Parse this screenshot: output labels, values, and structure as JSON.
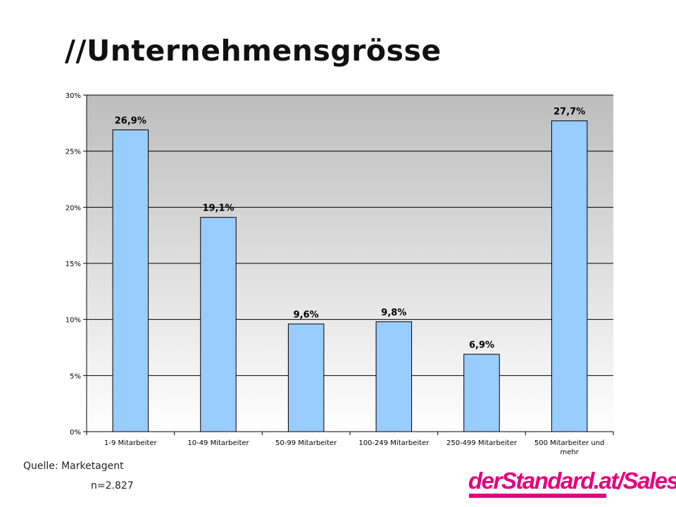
{
  "slide": {
    "title": "//Unternehmensgrösse",
    "source": "Quelle: Marketagent",
    "sample": "n=2.827"
  },
  "brand": {
    "main": "derStandard.at",
    "suffix": "/Sales",
    "main_color": "#e5007e",
    "suffix_color": "#e5007e"
  },
  "colors": {
    "bar_fill": "#99ccff",
    "bar_stroke": "#000000",
    "plot_top": "#bdbdbd",
    "plot_bottom": "#ffffff",
    "grid": "#000000"
  },
  "chart_data": {
    "type": "bar",
    "title": "",
    "xlabel": "",
    "ylabel": "",
    "categories": [
      [
        "1-9 Mitarbeiter"
      ],
      [
        "10-49 Mitarbeiter"
      ],
      [
        "50-99 Mitarbeiter"
      ],
      [
        "100-249 Mitarbeiter"
      ],
      [
        "250-499 Mitarbeiter"
      ],
      [
        "500 Mitarbeiter und",
        "mehr"
      ]
    ],
    "values": [
      26.9,
      19.1,
      9.6,
      9.8,
      6.9,
      27.7
    ],
    "data_labels": [
      "26,9%",
      "19,1%",
      "9,6%",
      "9,8%",
      "6,9%",
      "27,7%"
    ],
    "ylim": [
      0,
      30
    ],
    "yticks": [
      0,
      5,
      10,
      15,
      20,
      25,
      30
    ],
    "ytick_labels": [
      "0%",
      "5%",
      "10%",
      "15%",
      "20%",
      "25%",
      "30%"
    ],
    "grid": true,
    "legend": "none"
  }
}
